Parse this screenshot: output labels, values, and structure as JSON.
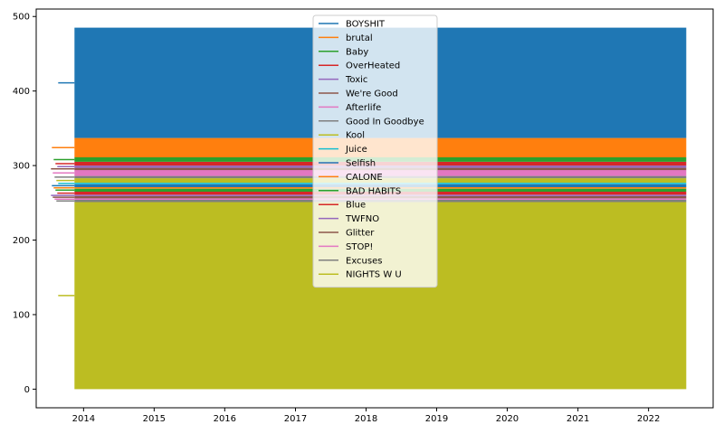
{
  "chart_data": {
    "type": "line",
    "title": "",
    "xlabel": "",
    "ylabel": "",
    "x_ticks": [
      "2014",
      "2015",
      "2016",
      "2017",
      "2018",
      "2019",
      "2020",
      "2021",
      "2022"
    ],
    "y_ticks": [
      "0",
      "100",
      "200",
      "300",
      "400",
      "500"
    ],
    "xlim": [
      "2013-05-01",
      "2022-12-01"
    ],
    "ylim": [
      -25,
      510
    ],
    "x_range": [
      "2013-11-15",
      "2022-07-15"
    ],
    "grid": false,
    "legend_position": "top-center",
    "series": [
      {
        "name": "BOYSHIT",
        "color": "#1f77b4",
        "y_band": [
          337,
          485
        ]
      },
      {
        "name": "brutal",
        "color": "#ff7f0e",
        "y_band": [
          311,
          337
        ]
      },
      {
        "name": "Baby",
        "color": "#2ca02c",
        "y_band": [
          305,
          311
        ]
      },
      {
        "name": "OverHeated",
        "color": "#d62728",
        "y_band": [
          300,
          305
        ]
      },
      {
        "name": "Toxic",
        "color": "#9467bd",
        "y_band": [
          297,
          300
        ]
      },
      {
        "name": "We're Good",
        "color": "#8c564b",
        "y_band": [
          294,
          297
        ]
      },
      {
        "name": "Afterlife",
        "color": "#e377c2",
        "y_band": [
          286,
          294
        ]
      },
      {
        "name": "Good In Goodbye",
        "color": "#7f7f7f",
        "y_band": [
          283,
          286
        ]
      },
      {
        "name": "Kool",
        "color": "#bcbd22",
        "y_band": [
          277,
          283
        ]
      },
      {
        "name": "Juice",
        "color": "#17becf",
        "y_band": [
          275,
          277
        ]
      },
      {
        "name": "Selfish",
        "color": "#1f77b4",
        "y_band": [
          271,
          275
        ]
      },
      {
        "name": "CALONE",
        "color": "#ff7f0e",
        "y_band": [
          269,
          271
        ]
      },
      {
        "name": "BAD HABITS",
        "color": "#2ca02c",
        "y_band": [
          265,
          269
        ]
      },
      {
        "name": "Blue",
        "color": "#d62728",
        "y_band": [
          261,
          265
        ]
      },
      {
        "name": "TWFNO",
        "color": "#9467bd",
        "y_band": [
          259,
          261
        ]
      },
      {
        "name": "Glitter",
        "color": "#8c564b",
        "y_band": [
          256,
          259
        ]
      },
      {
        "name": "STOP!",
        "color": "#e377c2",
        "y_band": [
          254,
          256
        ]
      },
      {
        "name": "Excuses",
        "color": "#7f7f7f",
        "y_band": [
          251,
          254
        ]
      },
      {
        "name": "NIGHTS W U",
        "color": "#bcbd22",
        "y_band": [
          0,
          251
        ]
      }
    ]
  }
}
